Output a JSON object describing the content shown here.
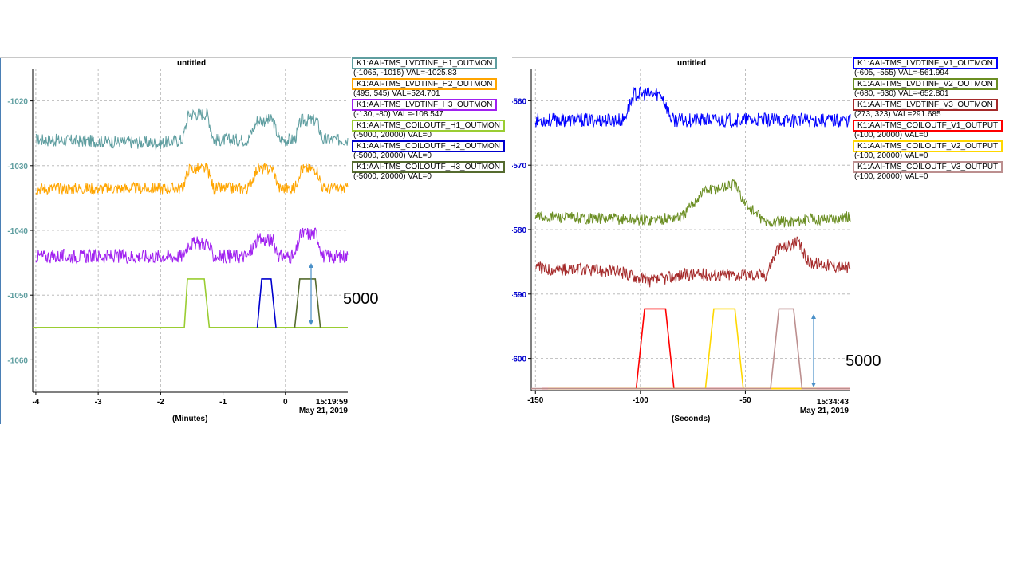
{
  "panels": [
    {
      "title": "untitled",
      "xlabel": "(Minutes)",
      "time_label": "15:19:59",
      "date_label": "May 21, 2019",
      "annotation": "5000",
      "legend": [
        {
          "name": "K1:AAI-TMS_LVDTINF_H1_OUTMON",
          "range": "(-1065, -1015) VAL=-1025.83",
          "color": "#5f9ea0"
        },
        {
          "name": "K1:AAI-TMS_LVDTINF_H2_OUTMON",
          "range": "(495, 545) VAL=524.701",
          "color": "#ffa500"
        },
        {
          "name": "K1:AAI-TMS_LVDTINF_H3_OUTMON",
          "range": "(-130, -80) VAL=-108.547",
          "color": "#a020f0"
        },
        {
          "name": "K1:AAI-TMS_COILOUTF_H1_OUTMON",
          "range": "(-5000, 20000)  VAL=0",
          "color": "#9acd32"
        },
        {
          "name": "K1:AAI-TMS_COILOUTF_H2_OUTMON",
          "range": "(-5000, 20000)  VAL=0",
          "color": "#0000cd"
        },
        {
          "name": "K1:AAI-TMS_COILOUTF_H3_OUTMON",
          "range": "(-5000, 20000)  VAL=0",
          "color": "#556b2f"
        }
      ]
    },
    {
      "title": "untitled",
      "xlabel": "(Seconds)",
      "time_label": "15:34:43",
      "date_label": "May 21, 2019",
      "annotation": "5000",
      "legend": [
        {
          "name": "K1:AAI-TMS_LVDTINF_V1_OUTMON",
          "range": "(-605, -555) VAL=-561.994",
          "color": "#0000ff"
        },
        {
          "name": "K1:AAI-TMS_LVDTINF_V2_OUTMON",
          "range": "(-680, -630) VAL=-652.801",
          "color": "#6b8e23"
        },
        {
          "name": "K1:AAI-TMS_LVDTINF_V3_OUTMON",
          "range": "(273, 323) VAL=291.685",
          "color": "#a52a2a"
        },
        {
          "name": "K1:AAI-TMS_COILOUTF_V1_OUTPUT",
          "range": "(-100, 20000)  VAL=0",
          "color": "#ff0000"
        },
        {
          "name": "K1:AAI-TMS_COILOUTF_V2_OUTPUT",
          "range": "(-100, 20000)  VAL=0",
          "color": "#ffd700"
        },
        {
          "name": "K1:AAI-TMS_COILOUTF_V3_OUTPUT",
          "range": "(-100, 20000)  VAL=0",
          "color": "#bc8f8f"
        }
      ]
    }
  ],
  "chart_data": [
    {
      "type": "line",
      "title": "untitled",
      "xlabel": "(Minutes)",
      "ylabel": "",
      "xlim": [
        -4.05,
        1.0
      ],
      "ylim": [
        -1065,
        -1015
      ],
      "xticks": [
        -4,
        -3,
        -2,
        -1,
        0
      ],
      "yticks": [
        -1060,
        -1050,
        -1040,
        -1030,
        -1020
      ],
      "grid": true,
      "legend_position": "top-right",
      "y_tick_color": "#5f9ea0",
      "series": [
        {
          "name": "K1:AAI-TMS_LVDTINF_H1_OUTMON",
          "color": "#5f9ea0",
          "kind": "noisy",
          "x": [
            -4.0,
            -2.0,
            -1.65,
            -1.55,
            -1.25,
            -1.15,
            -0.6,
            -0.45,
            -0.2,
            -0.1,
            0.15,
            0.25,
            0.5,
            0.6,
            1.0
          ],
          "y": [
            -1026,
            -1026.5,
            -1026,
            -1022,
            -1022,
            -1026,
            -1026,
            -1023,
            -1023,
            -1026,
            -1026,
            -1023,
            -1023,
            -1026,
            -1026
          ],
          "noise": 1.0
        },
        {
          "name": "K1:AAI-TMS_LVDTINF_H2_OUTMON",
          "color": "#ffa500",
          "kind": "noisy",
          "x": [
            -4.0,
            -2.0,
            -1.65,
            -1.55,
            -1.25,
            -1.15,
            -0.6,
            -0.45,
            -0.2,
            -0.1,
            0.15,
            0.25,
            0.5,
            0.6,
            1.0
          ],
          "y": [
            -1033.5,
            -1033.5,
            -1033.5,
            -1030.5,
            -1030.5,
            -1033.5,
            -1033.5,
            -1030.5,
            -1030.5,
            -1033.5,
            -1033.5,
            -1030.5,
            -1030.5,
            -1033.5,
            -1033.5
          ],
          "noise": 0.9
        },
        {
          "name": "K1:AAI-TMS_LVDTINF_H3_OUTMON",
          "color": "#a020f0",
          "kind": "noisy",
          "x": [
            -4.0,
            -2.0,
            -1.65,
            -1.55,
            -1.25,
            -1.15,
            -0.6,
            -0.45,
            -0.2,
            -0.1,
            0.15,
            0.25,
            0.5,
            0.6,
            1.0
          ],
          "y": [
            -1044,
            -1044,
            -1044,
            -1042,
            -1042,
            -1044,
            -1044,
            -1041.5,
            -1041.5,
            -1044,
            -1044,
            -1040.5,
            -1040.5,
            -1044,
            -1044
          ],
          "noise": 1.1
        },
        {
          "name": "K1:AAI-TMS_COILOUTF_H1_OUTMON",
          "color": "#9acd32",
          "kind": "line",
          "x": [
            -4.05,
            -1.62,
            -1.57,
            -1.3,
            -1.22,
            1.0
          ],
          "y": [
            -1055,
            -1055,
            -1047.5,
            -1047.5,
            -1055,
            -1055
          ]
        },
        {
          "name": "K1:AAI-TMS_COILOUTF_H2_OUTMON",
          "color": "#0000cd",
          "kind": "line",
          "x": [
            -0.45,
            -0.38,
            -0.23,
            -0.15
          ],
          "y": [
            -1055,
            -1047.5,
            -1047.5,
            -1055
          ]
        },
        {
          "name": "K1:AAI-TMS_COILOUTF_H3_OUTMON",
          "color": "#556b2f",
          "kind": "line",
          "x": [
            0.15,
            0.23,
            0.48,
            0.56
          ],
          "y": [
            -1055,
            -1047.5,
            -1047.5,
            -1055
          ]
        }
      ]
    },
    {
      "type": "line",
      "title": "untitled",
      "xlabel": "(Seconds)",
      "ylabel": "",
      "xlim": [
        -152,
        0
      ],
      "ylim": [
        -605,
        -555
      ],
      "xticks": [
        -150,
        -100,
        -50
      ],
      "yticks": [
        -600,
        -590,
        -580,
        -570,
        -560
      ],
      "grid": true,
      "legend_position": "top-right",
      "y_tick_color": "#0000cd",
      "series": [
        {
          "name": "K1:AAI-TMS_LVDTINF_V1_OUTMON",
          "color": "#0000ff",
          "kind": "noisy",
          "x": [
            -150,
            -108,
            -103,
            -90,
            -85,
            0
          ],
          "y": [
            -563,
            -563,
            -559,
            -559,
            -563,
            -563
          ],
          "noise": 1.1
        },
        {
          "name": "K1:AAI-TMS_LVDTINF_V2_OUTMON",
          "color": "#6b8e23",
          "kind": "noisy",
          "x": [
            -150,
            -95,
            -80,
            -70,
            -55,
            -50,
            -40,
            0
          ],
          "y": [
            -578,
            -578.5,
            -578,
            -574,
            -573,
            -576,
            -579,
            -578
          ],
          "noise": 0.9
        },
        {
          "name": "K1:AAI-TMS_LVDTINF_V3_OUTMON",
          "color": "#a52a2a",
          "kind": "noisy",
          "x": [
            -150,
            -110,
            -95,
            -80,
            -40,
            -35,
            -25,
            -20,
            0
          ],
          "y": [
            -586,
            -586.5,
            -588,
            -587,
            -587,
            -583,
            -582,
            -585,
            -586
          ],
          "noise": 1.0
        },
        {
          "name": "K1:AAI-TMS_COILOUTF_V1_OUTPUT",
          "color": "#ff0000",
          "kind": "line",
          "x": [
            -147,
            -102,
            -98,
            -88,
            -84,
            0
          ],
          "y": [
            -604.7,
            -604.7,
            -592.3,
            -592.3,
            -604.7,
            -604.7
          ]
        },
        {
          "name": "K1:AAI-TMS_COILOUTF_V2_OUTPUT",
          "color": "#ffd700",
          "kind": "line",
          "x": [
            -144,
            -140,
            -69,
            -65,
            -55,
            -51,
            -22,
            -16
          ],
          "y": [
            -604.7,
            -604.7,
            -604.7,
            -592.3,
            -592.3,
            -604.7,
            -604.7,
            -604.7
          ]
        },
        {
          "name": "K1:AAI-TMS_COILOUTF_V3_OUTPUT",
          "color": "#bc8f8f",
          "kind": "line",
          "x": [
            -152,
            -38,
            -34,
            -27,
            -23,
            0
          ],
          "y": [
            -604.7,
            -604.7,
            -592.3,
            -592.3,
            -604.7,
            -604.7
          ]
        }
      ]
    }
  ]
}
